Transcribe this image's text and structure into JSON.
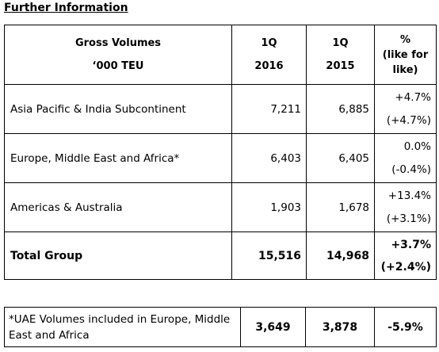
{
  "heading": "Further Information",
  "header": {
    "label_line1": "Gross Volumes",
    "label_line2": "‘000 TEU",
    "col1_line1": "1Q",
    "col1_line2": "2016",
    "col2_line1": "1Q",
    "col2_line2": "2015",
    "col3_line1": "%",
    "col3_line2": "(like for",
    "col3_line3": "like)"
  },
  "rows": [
    {
      "label": "Asia Pacific & India Subcontinent",
      "v2016": "7,211",
      "v2015": "6,885",
      "pct": "+4.7%",
      "lfl": "(+4.7%)"
    },
    {
      "label": "Europe, Middle East and Africa*",
      "v2016": "6,403",
      "v2015": "6,405",
      "pct": "0.0%",
      "lfl": "(-0.4%)"
    },
    {
      "label": "Americas & Australia",
      "v2016": "1,903",
      "v2015": "1,678",
      "pct": "+13.4%",
      "lfl": "(+3.1%)"
    },
    {
      "label": "Total Group",
      "v2016": "15,516",
      "v2015": "14,968",
      "pct": "+3.7%",
      "lfl": "(+2.4%)"
    }
  ],
  "footnote": {
    "label_line1": "*UAE Volumes included in Europe, Middle",
    "label_line2": "East and Africa",
    "v2016": "3,649",
    "v2015": "3,878",
    "pct": "-5.9%"
  }
}
